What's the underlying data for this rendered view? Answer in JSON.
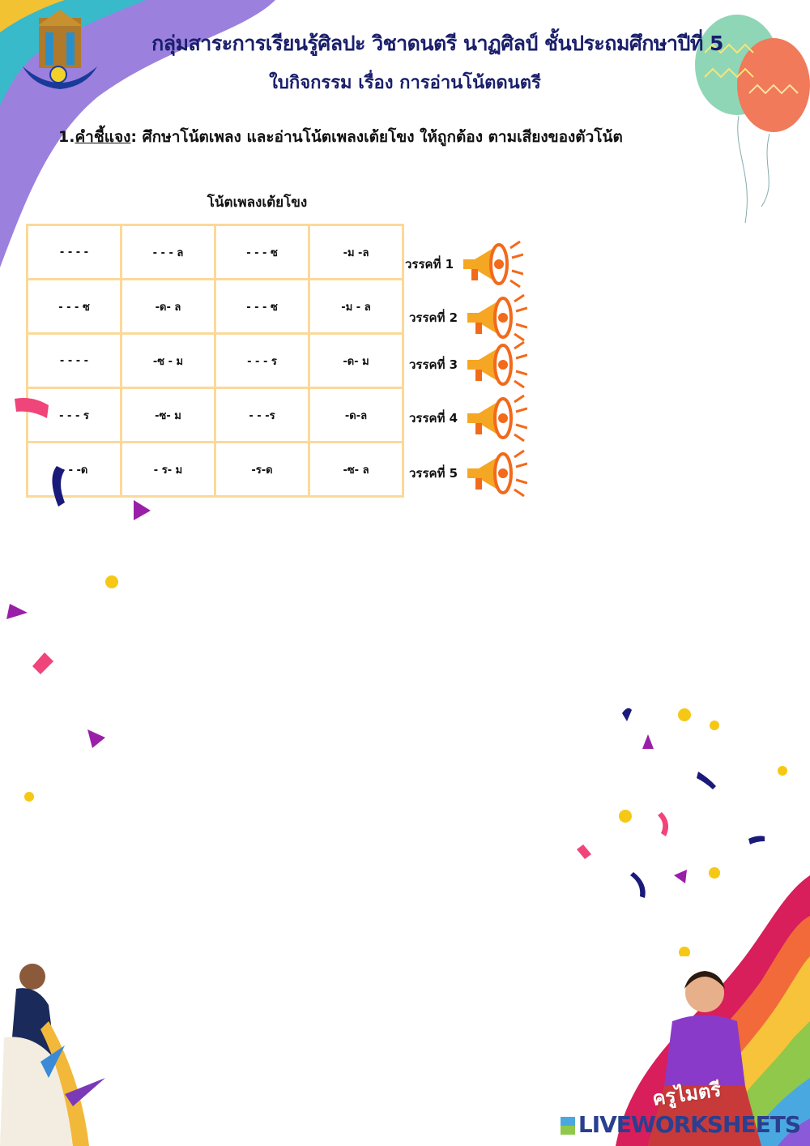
{
  "header": {
    "title": "กลุ่มสาระการเรียนรู้ศิลปะ วิชาดนตรี นาฏศิลป์   ชั้นประถมศึกษาปีที่ 5",
    "subtitle": "ใบกิจกรรม เรื่อง การอ่านโน้ตดนตรี"
  },
  "instruction": {
    "number": "1.",
    "label": "คำชี้แจง",
    "text": ": ศึกษาโน้ตเพลง และอ่านโน้ตเพลงเต้ยโขง ให้ถูกต้อง ตามเสียงของตัวโน้ต"
  },
  "song_title": "โน้ตเพลงเต้ยโขง",
  "notes_table": [
    [
      "- - - -",
      "- - - ล",
      "- - - ซ",
      "-ม -ล"
    ],
    [
      "- - - ซ",
      "-ด- ล",
      "- - - ซ",
      "-ม - ล"
    ],
    [
      "- - - -",
      "-ซ - ม",
      "- - - ร",
      "-ด- ม"
    ],
    [
      "- - - ร",
      "-ซ- ม",
      "- - -ร",
      "-ด-ล"
    ],
    [
      "- - -ด",
      "- ร- ม",
      "-ร-ด",
      "-ซ- ล"
    ]
  ],
  "verses": [
    "วรรคที่ 1",
    "วรรคที่ 2",
    "วรรคที่ 3",
    "วรรคที่  4",
    "วรรคที่ 5"
  ],
  "teacher_name": "ครูไมตรี",
  "watermark": "LIVEWORKSHEETS",
  "colors": {
    "title": "#1a1f6b",
    "table_border": "#fbd99a",
    "megaphone": "#f5a623"
  }
}
